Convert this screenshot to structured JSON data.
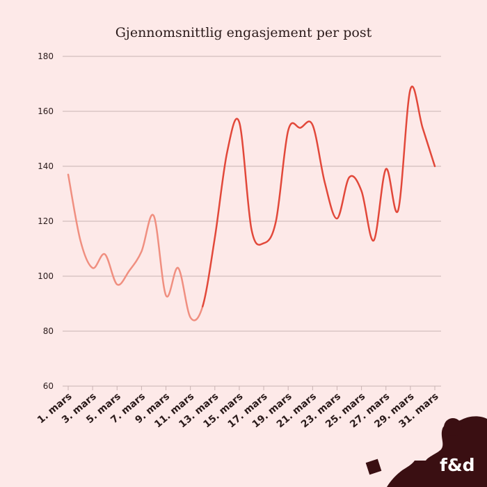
{
  "chart_data": {
    "type": "line",
    "title": "Gjennomsnittlig engasjement per post",
    "xlabel": "",
    "ylabel": "",
    "ylim": [
      60,
      180
    ],
    "yticks": [
      60,
      80,
      100,
      120,
      140,
      160,
      180
    ],
    "categories": [
      "1. mars",
      "2. mars",
      "3. mars",
      "4. mars",
      "5. mars",
      "6. mars",
      "7. mars",
      "8. mars",
      "9. mars",
      "10. mars",
      "11. mars",
      "12. mars",
      "13. mars",
      "14. mars",
      "15. mars",
      "16. mars",
      "17. mars",
      "18. mars",
      "19. mars",
      "20. mars",
      "21. mars",
      "22. mars",
      "23. mars",
      "24. mars",
      "25. mars",
      "26. mars",
      "27. mars",
      "28. mars",
      "29. mars",
      "30. mars",
      "31. mars"
    ],
    "values": [
      137,
      113,
      103,
      108,
      97,
      102,
      109,
      122,
      93,
      103,
      85,
      89,
      114,
      145,
      156,
      117,
      112,
      120,
      153,
      154,
      155,
      134,
      121,
      136,
      131,
      113,
      139,
      124,
      168,
      154,
      140
    ],
    "xtick_labels": [
      "1. mars",
      "3. mars",
      "5. mars",
      "7. mars",
      "9. mars",
      "11. mars",
      "13. mars",
      "15. mars",
      "17. mars",
      "19. mars",
      "21. mars",
      "23. mars",
      "25. mars",
      "27. mars",
      "29. mars",
      "31. mars"
    ],
    "segments": [
      {
        "from_index": 0,
        "to_index": 11,
        "color": "#f08f80"
      },
      {
        "from_index": 11,
        "to_index": 30,
        "color": "#e2483a"
      }
    ],
    "grid": true
  },
  "logo": {
    "text": "f&d",
    "color": "#3a0f12"
  }
}
